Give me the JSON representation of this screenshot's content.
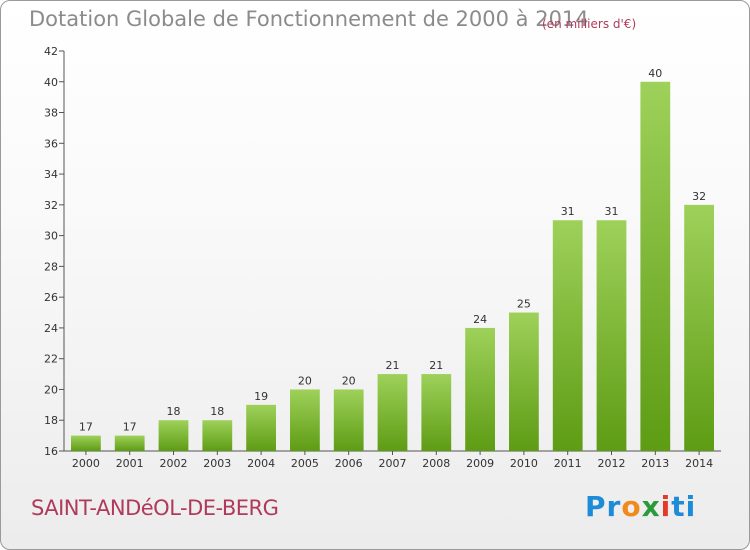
{
  "header": {
    "title": "Dotation Globale de Fonctionnement de 2000 à 2014",
    "unit": "(en milliers d'€)"
  },
  "footer": {
    "commune": "SAINT-ANDéOL-DE-BERG",
    "logo_parts": [
      "Pr",
      "o",
      "x",
      "i",
      "ti"
    ]
  },
  "colors": {
    "bar_top": "#9ed15a",
    "bar_bottom": "#5e9c14",
    "title": "#8b8b8b",
    "accent": "#b03a5b"
  },
  "chart_data": {
    "type": "bar",
    "title": "Dotation Globale de Fonctionnement de 2000 à 2014",
    "subtitle": "(en milliers d'€)",
    "categories": [
      "2000",
      "2001",
      "2002",
      "2003",
      "2004",
      "2005",
      "2006",
      "2007",
      "2008",
      "2009",
      "2010",
      "2011",
      "2012",
      "2013",
      "2014"
    ],
    "values": [
      17,
      17,
      18,
      18,
      19,
      20,
      20,
      21,
      21,
      24,
      25,
      31,
      31,
      40,
      32
    ],
    "ylim": [
      16,
      42
    ],
    "yticks": [
      16,
      18,
      20,
      22,
      24,
      26,
      28,
      30,
      32,
      34,
      36,
      38,
      40,
      42
    ],
    "grid": false,
    "xlabel": "",
    "ylabel": ""
  }
}
